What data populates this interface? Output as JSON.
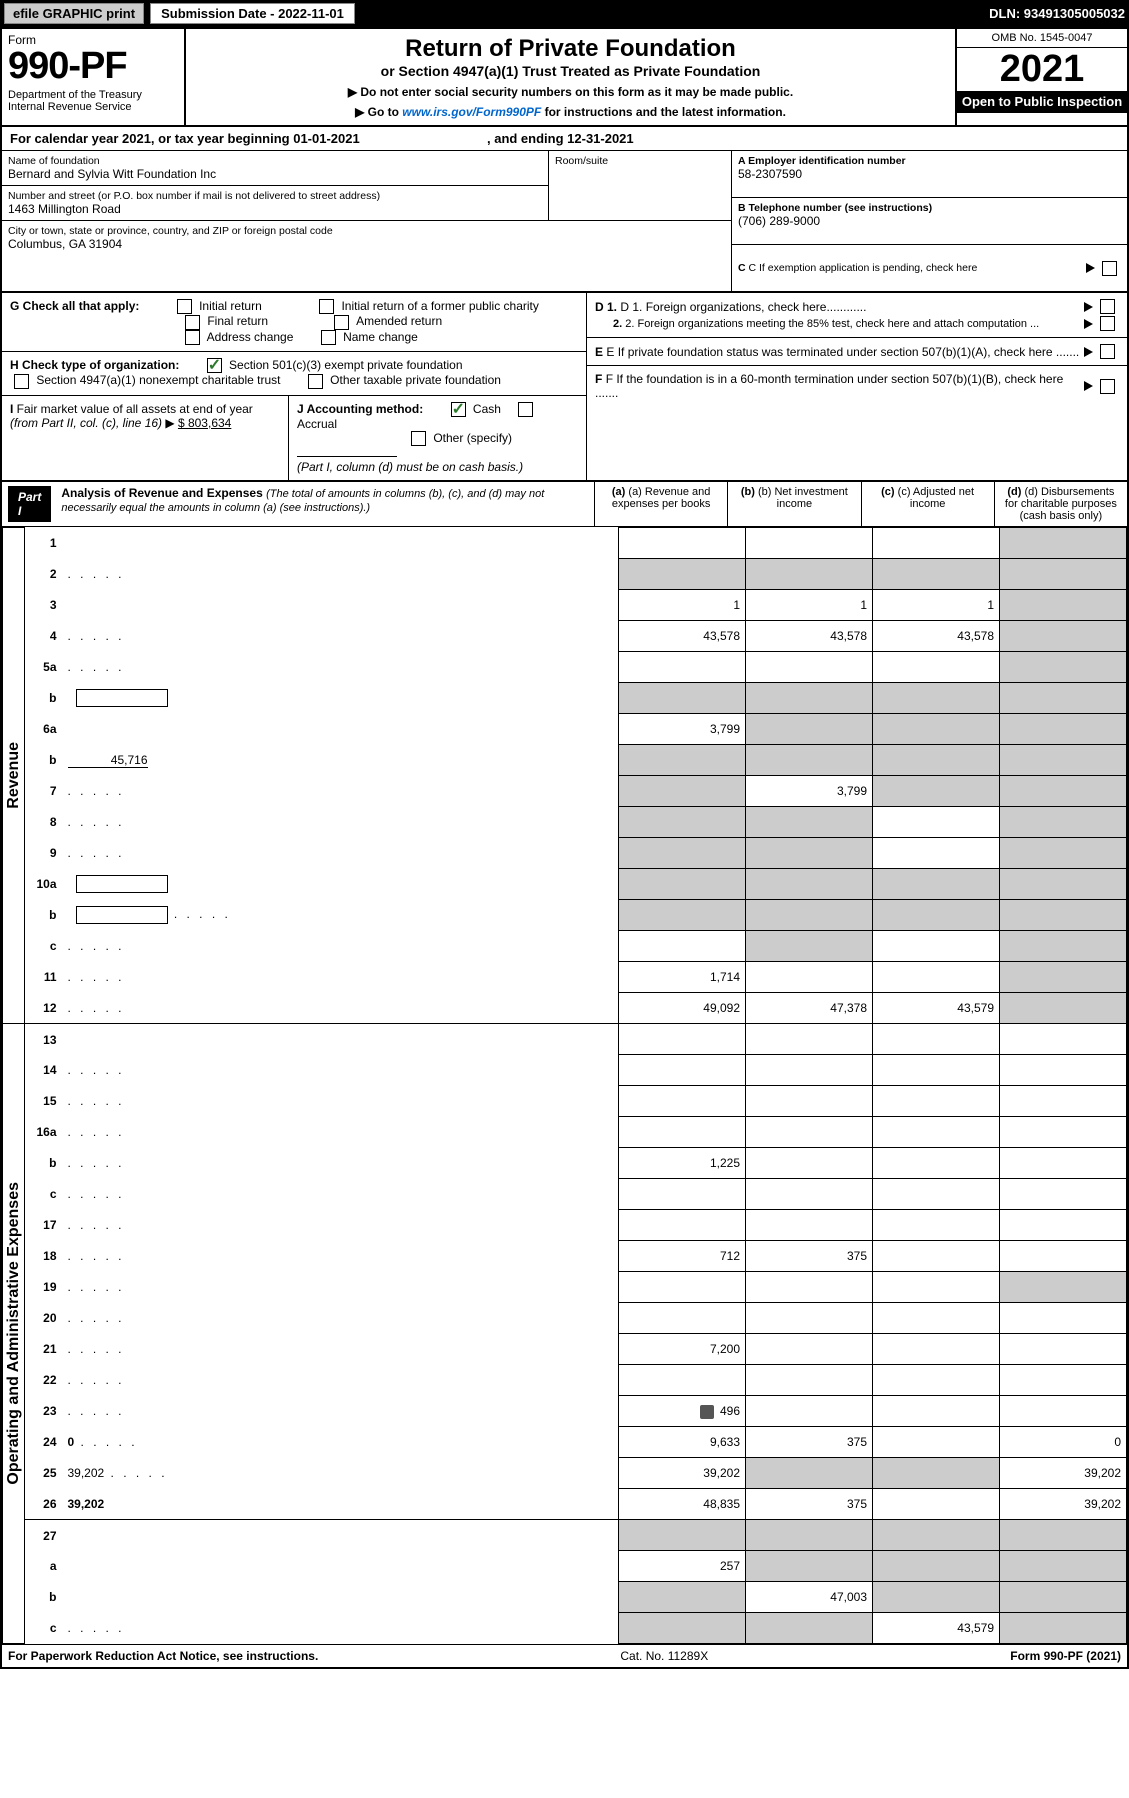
{
  "toolbar": {
    "efile": "efile GRAPHIC print",
    "submission_label": "Submission Date - 2022-11-01",
    "dln": "DLN: 93491305005032"
  },
  "header": {
    "form_word": "Form",
    "form_no": "990-PF",
    "dept": "Department of the Treasury\nInternal Revenue Service",
    "title": "Return of Private Foundation",
    "subtitle": "or Section 4947(a)(1) Trust Treated as Private Foundation",
    "instr1": "▶ Do not enter social security numbers on this form as it may be made public.",
    "instr2_a": "▶ Go to ",
    "instr2_link": "www.irs.gov/Form990PF",
    "instr2_b": " for instructions and the latest information.",
    "omb": "OMB No. 1545-0047",
    "year": "2021",
    "inspect": "Open to Public Inspection"
  },
  "cal": {
    "a": "For calendar year 2021, or tax year beginning 01-01-2021",
    "b": ", and ending 12-31-2021"
  },
  "entity": {
    "name_label": "Name of foundation",
    "name": "Bernard and Sylvia Witt Foundation Inc",
    "addr_label": "Number and street (or P.O. box number if mail is not delivered to street address)",
    "addr": "1463 Millington Road",
    "room_label": "Room/suite",
    "city_label": "City or town, state or province, country, and ZIP or foreign postal code",
    "city": "Columbus, GA  31904",
    "ein_label": "A Employer identification number",
    "ein": "58-2307590",
    "tel_label": "B Telephone number (see instructions)",
    "tel": "(706) 289-9000",
    "c_label": "C If exemption application is pending, check here"
  },
  "g": {
    "label": "G Check all that apply:",
    "opts": [
      "Initial return",
      "Final return",
      "Address change",
      "Initial return of a former public charity",
      "Amended return",
      "Name change"
    ]
  },
  "h": {
    "label": "H Check type of organization:",
    "o1": "Section 501(c)(3) exempt private foundation",
    "o2": "Section 4947(a)(1) nonexempt charitable trust",
    "o3": "Other taxable private foundation"
  },
  "i": {
    "label": "I Fair market value of all assets at end of year (from Part II, col. (c), line 16) ▶",
    "val": "$  803,634"
  },
  "j": {
    "label": "J Accounting method:",
    "o1": "Cash",
    "o2": "Accrual",
    "o3": "Other (specify)",
    "note": "(Part I, column (d) must be on cash basis.)"
  },
  "d": {
    "l1": "D 1. Foreign organizations, check here............",
    "l2": "2. Foreign organizations meeting the 85% test, check here and attach computation ..."
  },
  "e": {
    "t": "E  If private foundation status was terminated under section 507(b)(1)(A), check here ......."
  },
  "f": {
    "t": "F  If the foundation is in a 60-month termination under section 507(b)(1)(B), check here ......."
  },
  "part1": {
    "label": "Part I",
    "title": "Analysis of Revenue and Expenses",
    "note": "(The total of amounts in columns (b), (c), and (d) may not necessarily equal the amounts in column (a) (see instructions).)",
    "col_a": "(a)  Revenue and expenses per books",
    "col_b": "(b)  Net investment income",
    "col_c": "(c)  Adjusted net income",
    "col_d": "(d)  Disbursements for charitable purposes (cash basis only)"
  },
  "sections": {
    "rev": "Revenue",
    "exp": "Operating and Administrative Expenses"
  },
  "rows": [
    {
      "n": "1",
      "d": "",
      "a": "",
      "b": "",
      "c": "",
      "sh": [
        "d"
      ]
    },
    {
      "n": "2",
      "d": "",
      "a": "",
      "b": "",
      "c": "",
      "sh": [
        "a",
        "b",
        "c",
        "d"
      ],
      "dots": true,
      "bold_not": true
    },
    {
      "n": "3",
      "d": "",
      "a": "1",
      "b": "1",
      "c": "1",
      "sh": [
        "d"
      ]
    },
    {
      "n": "4",
      "d": "",
      "a": "43,578",
      "b": "43,578",
      "c": "43,578",
      "sh": [
        "d"
      ],
      "dots": true
    },
    {
      "n": "5a",
      "d": "",
      "a": "",
      "b": "",
      "c": "",
      "sh": [
        "d"
      ],
      "dots": true
    },
    {
      "n": "b",
      "d": "",
      "a": "",
      "b": "",
      "c": "",
      "sh": [
        "a",
        "b",
        "c",
        "d"
      ],
      "inline": true
    },
    {
      "n": "6a",
      "d": "",
      "a": "3,799",
      "b": "",
      "c": "",
      "sh": [
        "b",
        "c",
        "d"
      ]
    },
    {
      "n": "b",
      "d": "",
      "inline_val": "45,716",
      "a": "",
      "b": "",
      "c": "",
      "sh": [
        "a",
        "b",
        "c",
        "d"
      ]
    },
    {
      "n": "7",
      "d": "",
      "a": "",
      "b": "3,799",
      "c": "",
      "sh": [
        "a",
        "c",
        "d"
      ],
      "dots": true
    },
    {
      "n": "8",
      "d": "",
      "a": "",
      "b": "",
      "c": "",
      "sh": [
        "a",
        "b",
        "d"
      ],
      "dots": true
    },
    {
      "n": "9",
      "d": "",
      "a": "",
      "b": "",
      "c": "",
      "sh": [
        "a",
        "b",
        "d"
      ],
      "dots": true
    },
    {
      "n": "10a",
      "d": "",
      "a": "",
      "b": "",
      "c": "",
      "sh": [
        "a",
        "b",
        "c",
        "d"
      ],
      "inline": true
    },
    {
      "n": "b",
      "d": "",
      "a": "",
      "b": "",
      "c": "",
      "sh": [
        "a",
        "b",
        "c",
        "d"
      ],
      "inline": true,
      "dots": true
    },
    {
      "n": "c",
      "d": "",
      "a": "",
      "b": "",
      "c": "",
      "sh": [
        "b",
        "d"
      ],
      "dots": true
    },
    {
      "n": "11",
      "d": "",
      "a": "1,714",
      "b": "",
      "c": "",
      "sh": [
        "d"
      ],
      "dots": true
    },
    {
      "n": "12",
      "d": "",
      "a": "49,092",
      "b": "47,378",
      "c": "43,579",
      "sh": [
        "d"
      ],
      "dots": true,
      "bold": true,
      "botline": true
    }
  ],
  "exp_rows": [
    {
      "n": "13",
      "d": "",
      "a": "",
      "b": "",
      "c": ""
    },
    {
      "n": "14",
      "d": "",
      "a": "",
      "b": "",
      "c": "",
      "dots": true
    },
    {
      "n": "15",
      "d": "",
      "a": "",
      "b": "",
      "c": "",
      "dots": true
    },
    {
      "n": "16a",
      "d": "",
      "a": "",
      "b": "",
      "c": "",
      "dots": true
    },
    {
      "n": "b",
      "d": "",
      "a": "1,225",
      "b": "",
      "c": "",
      "dots": true
    },
    {
      "n": "c",
      "d": "",
      "a": "",
      "b": "",
      "c": "",
      "dots": true
    },
    {
      "n": "17",
      "d": "",
      "a": "",
      "b": "",
      "c": "",
      "dots": true
    },
    {
      "n": "18",
      "d": "",
      "a": "712",
      "b": "375",
      "c": "",
      "dots": true
    },
    {
      "n": "19",
      "d": "",
      "a": "",
      "b": "",
      "c": "",
      "sh": [
        "d"
      ],
      "dots": true
    },
    {
      "n": "20",
      "d": "",
      "a": "",
      "b": "",
      "c": "",
      "dots": true
    },
    {
      "n": "21",
      "d": "",
      "a": "7,200",
      "b": "",
      "c": "",
      "dots": true
    },
    {
      "n": "22",
      "d": "",
      "a": "",
      "b": "",
      "c": "",
      "dots": true
    },
    {
      "n": "23",
      "d": "",
      "a": "496",
      "b": "",
      "c": "",
      "dots": true,
      "attach": true
    },
    {
      "n": "24",
      "d": "0",
      "a": "9,633",
      "b": "375",
      "c": "",
      "dots": true,
      "bold": true
    },
    {
      "n": "25",
      "d": "39,202",
      "a": "39,202",
      "b": "",
      "c": "",
      "sh": [
        "b",
        "c"
      ],
      "dots": true
    },
    {
      "n": "26",
      "d": "39,202",
      "a": "48,835",
      "b": "375",
      "c": "",
      "bold": true,
      "botline": true
    },
    {
      "n": "27",
      "d": "",
      "a": "",
      "b": "",
      "c": "",
      "sh": [
        "a",
        "b",
        "c",
        "d"
      ]
    },
    {
      "n": "a",
      "d": "",
      "a": "257",
      "b": "",
      "c": "",
      "sh": [
        "b",
        "c",
        "d"
      ],
      "bold": true
    },
    {
      "n": "b",
      "d": "",
      "a": "",
      "b": "47,003",
      "c": "",
      "sh": [
        "a",
        "c",
        "d"
      ],
      "bold": true
    },
    {
      "n": "c",
      "d": "",
      "a": "",
      "b": "",
      "c": "43,579",
      "sh": [
        "a",
        "b",
        "d"
      ],
      "bold": true,
      "dots": true
    }
  ],
  "footer": {
    "left": "For Paperwork Reduction Act Notice, see instructions.",
    "mid": "Cat. No. 11289X",
    "right": "Form 990-PF (2021)"
  },
  "colors": {
    "shade": "#cccccc",
    "link": "#0066cc",
    "check": "#2a7a2a"
  }
}
